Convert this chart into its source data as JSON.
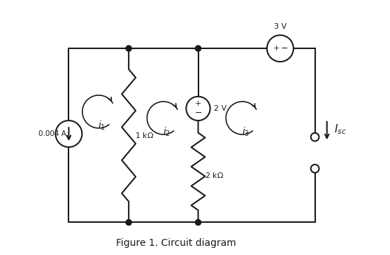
{
  "bg_color": "#ffffff",
  "line_color": "#1a1a1a",
  "title": "Figure 1. Circuit diagram",
  "title_fontsize": 10,
  "fig_width": 5.58,
  "fig_height": 3.64,
  "dpi": 100
}
